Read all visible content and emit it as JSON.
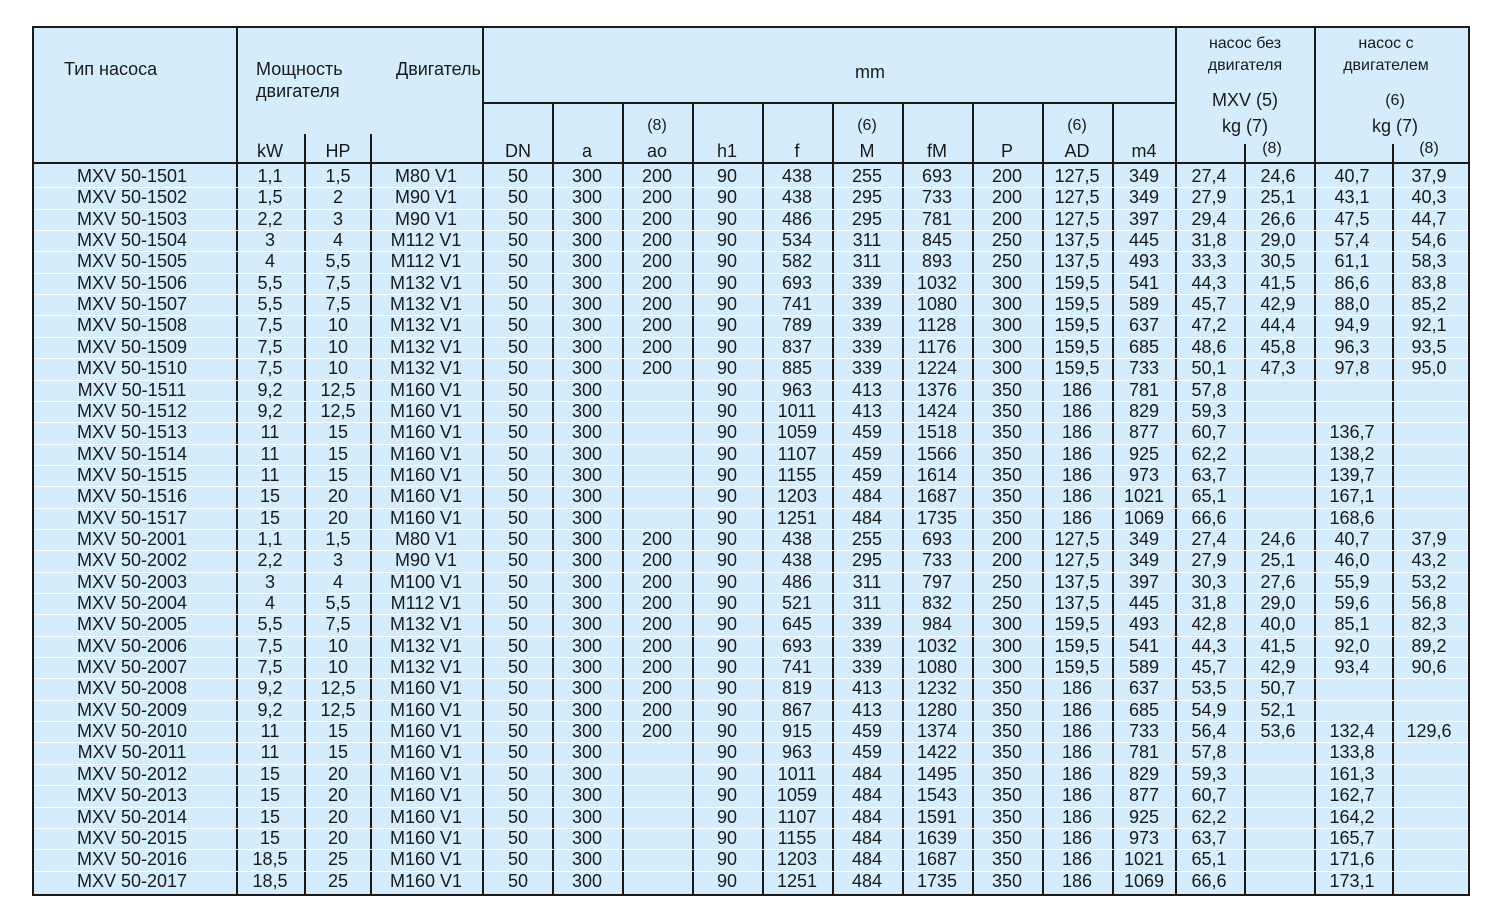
{
  "header": {
    "type": "Тип насоса",
    "power": "Мощность двигателя",
    "motor": "Двигатель",
    "kw": "kW",
    "hp": "HP",
    "mm": "mm",
    "dn": "DN",
    "a": "a",
    "ao_note": "(8)",
    "ao": "ao",
    "h1": "h1",
    "f": "f",
    "m_note": "(6)",
    "m": "M",
    "fm": "fM",
    "p": "P",
    "ad_note": "(6)",
    "ad": "AD",
    "m4": "m4",
    "pump_nomotor": "насос без двигателя",
    "pump_nomotor_model": "MXV (5)",
    "pump_nomotor_kg": "kg (7)",
    "pump_nomotor_note": "(8)",
    "pump_motor": "насос с двигателем",
    "pump_motor_note6": "(6)",
    "pump_motor_kg": "kg (7)",
    "pump_motor_note8": "(8)"
  },
  "rows": [
    [
      "MXV 50-1501",
      "1,1",
      "1,5",
      "M80 V1",
      "50",
      "300",
      "200",
      "90",
      "438",
      "255",
      "693",
      "200",
      "127,5",
      "349",
      "27,4",
      "24,6",
      "40,7",
      "37,9"
    ],
    [
      "MXV 50-1502",
      "1,5",
      "2",
      "M90 V1",
      "50",
      "300",
      "200",
      "90",
      "438",
      "295",
      "733",
      "200",
      "127,5",
      "349",
      "27,9",
      "25,1",
      "43,1",
      "40,3"
    ],
    [
      "MXV 50-1503",
      "2,2",
      "3",
      "M90 V1",
      "50",
      "300",
      "200",
      "90",
      "486",
      "295",
      "781",
      "200",
      "127,5",
      "397",
      "29,4",
      "26,6",
      "47,5",
      "44,7"
    ],
    [
      "MXV 50-1504",
      "3",
      "4",
      "M112 V1",
      "50",
      "300",
      "200",
      "90",
      "534",
      "311",
      "845",
      "250",
      "137,5",
      "445",
      "31,8",
      "29,0",
      "57,4",
      "54,6"
    ],
    [
      "MXV 50-1505",
      "4",
      "5,5",
      "M112 V1",
      "50",
      "300",
      "200",
      "90",
      "582",
      "311",
      "893",
      "250",
      "137,5",
      "493",
      "33,3",
      "30,5",
      "61,1",
      "58,3"
    ],
    [
      "MXV 50-1506",
      "5,5",
      "7,5",
      "M132 V1",
      "50",
      "300",
      "200",
      "90",
      "693",
      "339",
      "1032",
      "300",
      "159,5",
      "541",
      "44,3",
      "41,5",
      "86,6",
      "83,8"
    ],
    [
      "MXV 50-1507",
      "5,5",
      "7,5",
      "M132 V1",
      "50",
      "300",
      "200",
      "90",
      "741",
      "339",
      "1080",
      "300",
      "159,5",
      "589",
      "45,7",
      "42,9",
      "88,0",
      "85,2"
    ],
    [
      "MXV 50-1508",
      "7,5",
      "10",
      "M132 V1",
      "50",
      "300",
      "200",
      "90",
      "789",
      "339",
      "1128",
      "300",
      "159,5",
      "637",
      "47,2",
      "44,4",
      "94,9",
      "92,1"
    ],
    [
      "MXV 50-1509",
      "7,5",
      "10",
      "M132 V1",
      "50",
      "300",
      "200",
      "90",
      "837",
      "339",
      "1176",
      "300",
      "159,5",
      "685",
      "48,6",
      "45,8",
      "96,3",
      "93,5"
    ],
    [
      "MXV 50-1510",
      "7,5",
      "10",
      "M132 V1",
      "50",
      "300",
      "200",
      "90",
      "885",
      "339",
      "1224",
      "300",
      "159,5",
      "733",
      "50,1",
      "47,3",
      "97,8",
      "95,0"
    ],
    [
      "MXV 50-1511",
      "9,2",
      "12,5",
      "M160 V1",
      "50",
      "300",
      "",
      "90",
      "963",
      "413",
      "1376",
      "350",
      "186",
      "781",
      "57,8",
      "",
      "",
      ""
    ],
    [
      "MXV 50-1512",
      "9,2",
      "12,5",
      "M160 V1",
      "50",
      "300",
      "",
      "90",
      "1011",
      "413",
      "1424",
      "350",
      "186",
      "829",
      "59,3",
      "",
      "",
      ""
    ],
    [
      "MXV 50-1513",
      "11",
      "15",
      "M160 V1",
      "50",
      "300",
      "",
      "90",
      "1059",
      "459",
      "1518",
      "350",
      "186",
      "877",
      "60,7",
      "",
      "136,7",
      ""
    ],
    [
      "MXV 50-1514",
      "11",
      "15",
      "M160 V1",
      "50",
      "300",
      "",
      "90",
      "1107",
      "459",
      "1566",
      "350",
      "186",
      "925",
      "62,2",
      "",
      "138,2",
      ""
    ],
    [
      "MXV 50-1515",
      "11",
      "15",
      "M160 V1",
      "50",
      "300",
      "",
      "90",
      "1155",
      "459",
      "1614",
      "350",
      "186",
      "973",
      "63,7",
      "",
      "139,7",
      ""
    ],
    [
      "MXV 50-1516",
      "15",
      "20",
      "M160 V1",
      "50",
      "300",
      "",
      "90",
      "1203",
      "484",
      "1687",
      "350",
      "186",
      "1021",
      "65,1",
      "",
      "167,1",
      ""
    ],
    [
      "MXV 50-1517",
      "15",
      "20",
      "M160 V1",
      "50",
      "300",
      "",
      "90",
      "1251",
      "484",
      "1735",
      "350",
      "186",
      "1069",
      "66,6",
      "",
      "168,6",
      ""
    ],
    [
      "MXV 50-2001",
      "1,1",
      "1,5",
      "M80 V1",
      "50",
      "300",
      "200",
      "90",
      "438",
      "255",
      "693",
      "200",
      "127,5",
      "349",
      "27,4",
      "24,6",
      "40,7",
      "37,9"
    ],
    [
      "MXV 50-2002",
      "2,2",
      "3",
      "M90 V1",
      "50",
      "300",
      "200",
      "90",
      "438",
      "295",
      "733",
      "200",
      "127,5",
      "349",
      "27,9",
      "25,1",
      "46,0",
      "43,2"
    ],
    [
      "MXV 50-2003",
      "3",
      "4",
      "M100 V1",
      "50",
      "300",
      "200",
      "90",
      "486",
      "311",
      "797",
      "250",
      "137,5",
      "397",
      "30,3",
      "27,6",
      "55,9",
      "53,2"
    ],
    [
      "MXV 50-2004",
      "4",
      "5,5",
      "M112 V1",
      "50",
      "300",
      "200",
      "90",
      "521",
      "311",
      "832",
      "250",
      "137,5",
      "445",
      "31,8",
      "29,0",
      "59,6",
      "56,8"
    ],
    [
      "MXV 50-2005",
      "5,5",
      "7,5",
      "M132 V1",
      "50",
      "300",
      "200",
      "90",
      "645",
      "339",
      "984",
      "300",
      "159,5",
      "493",
      "42,8",
      "40,0",
      "85,1",
      "82,3"
    ],
    [
      "MXV 50-2006",
      "7,5",
      "10",
      "M132 V1",
      "50",
      "300",
      "200",
      "90",
      "693",
      "339",
      "1032",
      "300",
      "159,5",
      "541",
      "44,3",
      "41,5",
      "92,0",
      "89,2"
    ],
    [
      "MXV 50-2007",
      "7,5",
      "10",
      "M132 V1",
      "50",
      "300",
      "200",
      "90",
      "741",
      "339",
      "1080",
      "300",
      "159,5",
      "589",
      "45,7",
      "42,9",
      "93,4",
      "90,6"
    ],
    [
      "MXV 50-2008",
      "9,2",
      "12,5",
      "M160 V1",
      "50",
      "300",
      "200",
      "90",
      "819",
      "413",
      "1232",
      "350",
      "186",
      "637",
      "53,5",
      "50,7",
      "",
      ""
    ],
    [
      "MXV 50-2009",
      "9,2",
      "12,5",
      "M160 V1",
      "50",
      "300",
      "200",
      "90",
      "867",
      "413",
      "1280",
      "350",
      "186",
      "685",
      "54,9",
      "52,1",
      "",
      ""
    ],
    [
      "MXV 50-2010",
      "11",
      "15",
      "M160 V1",
      "50",
      "300",
      "200",
      "90",
      "915",
      "459",
      "1374",
      "350",
      "186",
      "733",
      "56,4",
      "53,6",
      "132,4",
      "129,6"
    ],
    [
      "MXV 50-2011",
      "11",
      "15",
      "M160 V1",
      "50",
      "300",
      "",
      "90",
      "963",
      "459",
      "1422",
      "350",
      "186",
      "781",
      "57,8",
      "",
      "133,8",
      ""
    ],
    [
      "MXV 50-2012",
      "15",
      "20",
      "M160 V1",
      "50",
      "300",
      "",
      "90",
      "1011",
      "484",
      "1495",
      "350",
      "186",
      "829",
      "59,3",
      "",
      "161,3",
      ""
    ],
    [
      "MXV 50-2013",
      "15",
      "20",
      "M160 V1",
      "50",
      "300",
      "",
      "90",
      "1059",
      "484",
      "1543",
      "350",
      "186",
      "877",
      "60,7",
      "",
      "162,7",
      ""
    ],
    [
      "MXV 50-2014",
      "15",
      "20",
      "M160 V1",
      "50",
      "300",
      "",
      "90",
      "1107",
      "484",
      "1591",
      "350",
      "186",
      "925",
      "62,2",
      "",
      "164,2",
      ""
    ],
    [
      "MXV 50-2015",
      "15",
      "20",
      "M160 V1",
      "50",
      "300",
      "",
      "90",
      "1155",
      "484",
      "1639",
      "350",
      "186",
      "973",
      "63,7",
      "",
      "165,7",
      ""
    ],
    [
      "MXV 50-2016",
      "18,5",
      "25",
      "M160 V1",
      "50",
      "300",
      "",
      "90",
      "1203",
      "484",
      "1687",
      "350",
      "186",
      "1021",
      "65,1",
      "",
      "171,6",
      ""
    ],
    [
      "MXV 50-2017",
      "18,5",
      "25",
      "M160 V1",
      "50",
      "300",
      "",
      "90",
      "1251",
      "484",
      "1735",
      "350",
      "186",
      "1069",
      "66,6",
      "",
      "173,1",
      ""
    ]
  ]
}
